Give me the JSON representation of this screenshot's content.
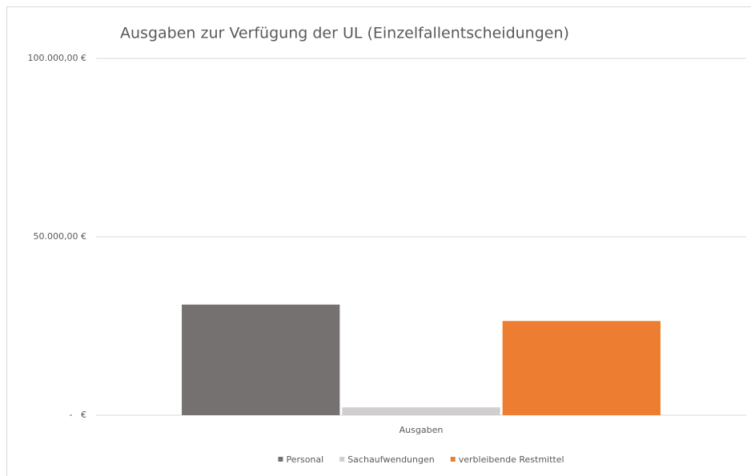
{
  "chart_data": {
    "type": "bar",
    "title": "Ausgaben zur Verfügung der UL (Einzelfallentscheidungen)",
    "categories": [
      "Ausgaben"
    ],
    "series": [
      {
        "name": "Personal",
        "color": "#767171",
        "values": [
          31000
        ]
      },
      {
        "name": "Sachaufwendungen",
        "color": "#d0cece",
        "values": [
          2200
        ]
      },
      {
        "name": "verbleibende Restmittel",
        "color": "#ed7d31",
        "values": [
          26400
        ]
      }
    ],
    "ylim": [
      0,
      100000
    ],
    "yticks": [
      {
        "value": 0,
        "label": "-   €"
      },
      {
        "value": 50000,
        "label": "50.000,00 €"
      },
      {
        "value": 100000,
        "label": "100.000,00 €"
      }
    ],
    "grid": true,
    "legend": "bottom"
  }
}
